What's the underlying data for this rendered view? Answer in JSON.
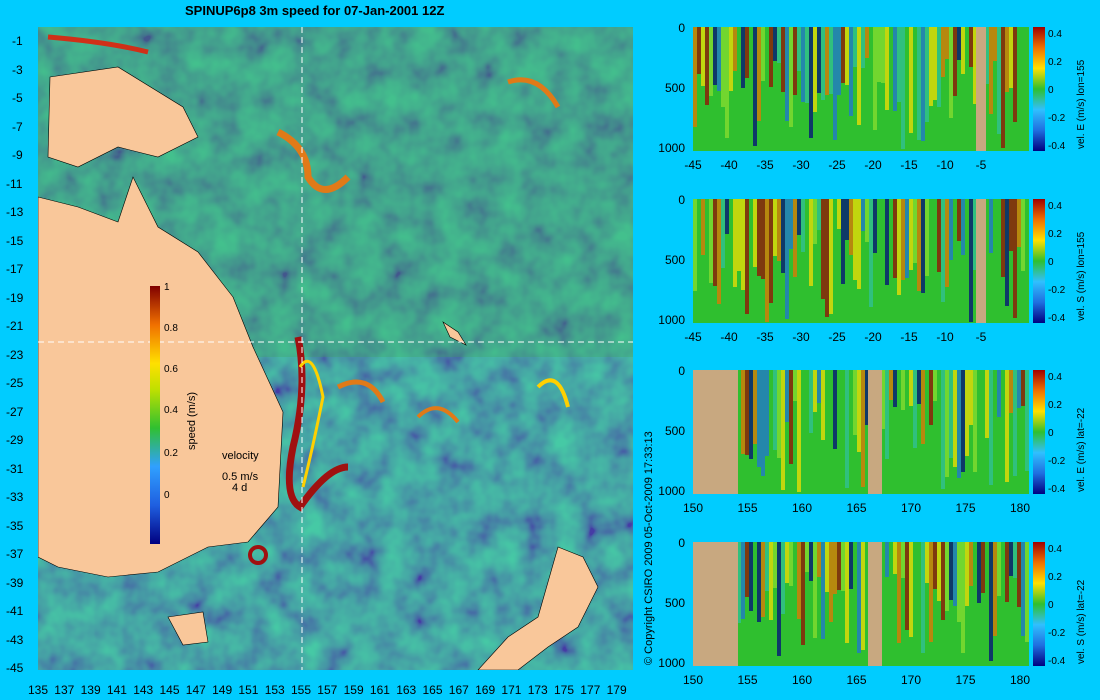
{
  "title": "SPINUP6p8 3m speed for 07-Jan-2001 12Z",
  "copyright": "© Copyright CSIRO 2009   05-Oct-2009 17:33:13",
  "map": {
    "lat_labels": [
      "-1",
      "-3",
      "-5",
      "-7",
      "-9",
      "-11",
      "-13",
      "-15",
      "-17",
      "-19",
      "-21",
      "-23",
      "-25",
      "-27",
      "-29",
      "-31",
      "-33",
      "-35",
      "-37",
      "-39",
      "-41",
      "-43",
      "-45"
    ],
    "lon_labels": [
      "135",
      "137",
      "139",
      "141",
      "143",
      "145",
      "147",
      "149",
      "151",
      "153",
      "155",
      "157",
      "159",
      "161",
      "163",
      "165",
      "167",
      "169",
      "171",
      "173",
      "175",
      "177",
      "179"
    ],
    "colorbar": {
      "label": "speed (m/s)",
      "ticks": [
        "1",
        "0.8",
        "0.6",
        "0.4",
        "0.2",
        "0"
      ]
    },
    "velocity_key": {
      "title": "velocity",
      "speed": "0.5 m/s",
      "time": "4 d"
    },
    "colors": {
      "land": "#f9c79a",
      "ocean": "#2f86d8",
      "crosshair": "#ffffff"
    }
  },
  "panels": [
    {
      "name": "vel-e-lon155",
      "label": "vel. E (m/s) lon=155",
      "x_labels": [
        "-45",
        "-40",
        "-35",
        "-30",
        "-25",
        "-20",
        "-15",
        "-10",
        "-5"
      ],
      "y_labels": [
        "0",
        "500",
        "1000"
      ],
      "cbar_ticks": [
        "0.4",
        "0.2",
        "0",
        "-0.2",
        "-0.4"
      ]
    },
    {
      "name": "vel-s-lon155",
      "label": "vel. S (m/s) lon=155",
      "x_labels": [
        "-45",
        "-40",
        "-35",
        "-30",
        "-25",
        "-20",
        "-15",
        "-10",
        "-5"
      ],
      "y_labels": [
        "0",
        "500",
        "1000"
      ],
      "cbar_ticks": [
        "0.4",
        "0.2",
        "0",
        "-0.2",
        "-0.4"
      ]
    },
    {
      "name": "vel-e-lat22",
      "label": "vel. E (m/s) lat=-22",
      "x_labels": [
        "150",
        "155",
        "160",
        "165",
        "170",
        "175",
        "180"
      ],
      "y_labels": [
        "0",
        "500",
        "1000"
      ],
      "cbar_ticks": [
        "0.4",
        "0.2",
        "0",
        "-0.2",
        "-0.4"
      ]
    },
    {
      "name": "vel-s-lat22",
      "label": "vel. S (m/s) lat=-22",
      "x_labels": [
        "150",
        "155",
        "160",
        "165",
        "170",
        "175",
        "180"
      ],
      "y_labels": [
        "0",
        "500",
        "1000"
      ],
      "cbar_ticks": [
        "0.4",
        "0.2",
        "0",
        "-0.2",
        "-0.4"
      ]
    }
  ]
}
